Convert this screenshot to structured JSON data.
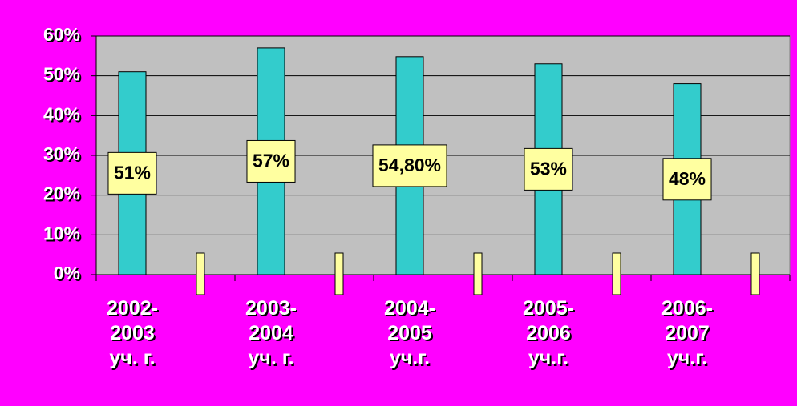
{
  "chart_data": {
    "type": "bar",
    "categories": [
      "2002-\n2003\nуч. г.",
      "2003-\n2004\nуч. г.",
      "2004-\n2005\nуч.г.",
      "2005-\n2006\nуч.г.",
      "2006-\n2007\nуч.г."
    ],
    "values": [
      51,
      57,
      54.8,
      53,
      48
    ],
    "value_labels": [
      "51%",
      "57%",
      "54,80%",
      "53%",
      "48%"
    ],
    "color": "#33cccc",
    "ylim": [
      0,
      60
    ],
    "yticks": [
      {
        "value": 0,
        "label": "0%"
      },
      {
        "value": 10,
        "label": "10%"
      },
      {
        "value": 20,
        "label": "20%"
      },
      {
        "value": 30,
        "label": "30%"
      },
      {
        "value": 40,
        "label": "40%"
      },
      {
        "value": 50,
        "label": "50%"
      },
      {
        "value": 60,
        "label": "60%"
      }
    ],
    "grid": true
  }
}
